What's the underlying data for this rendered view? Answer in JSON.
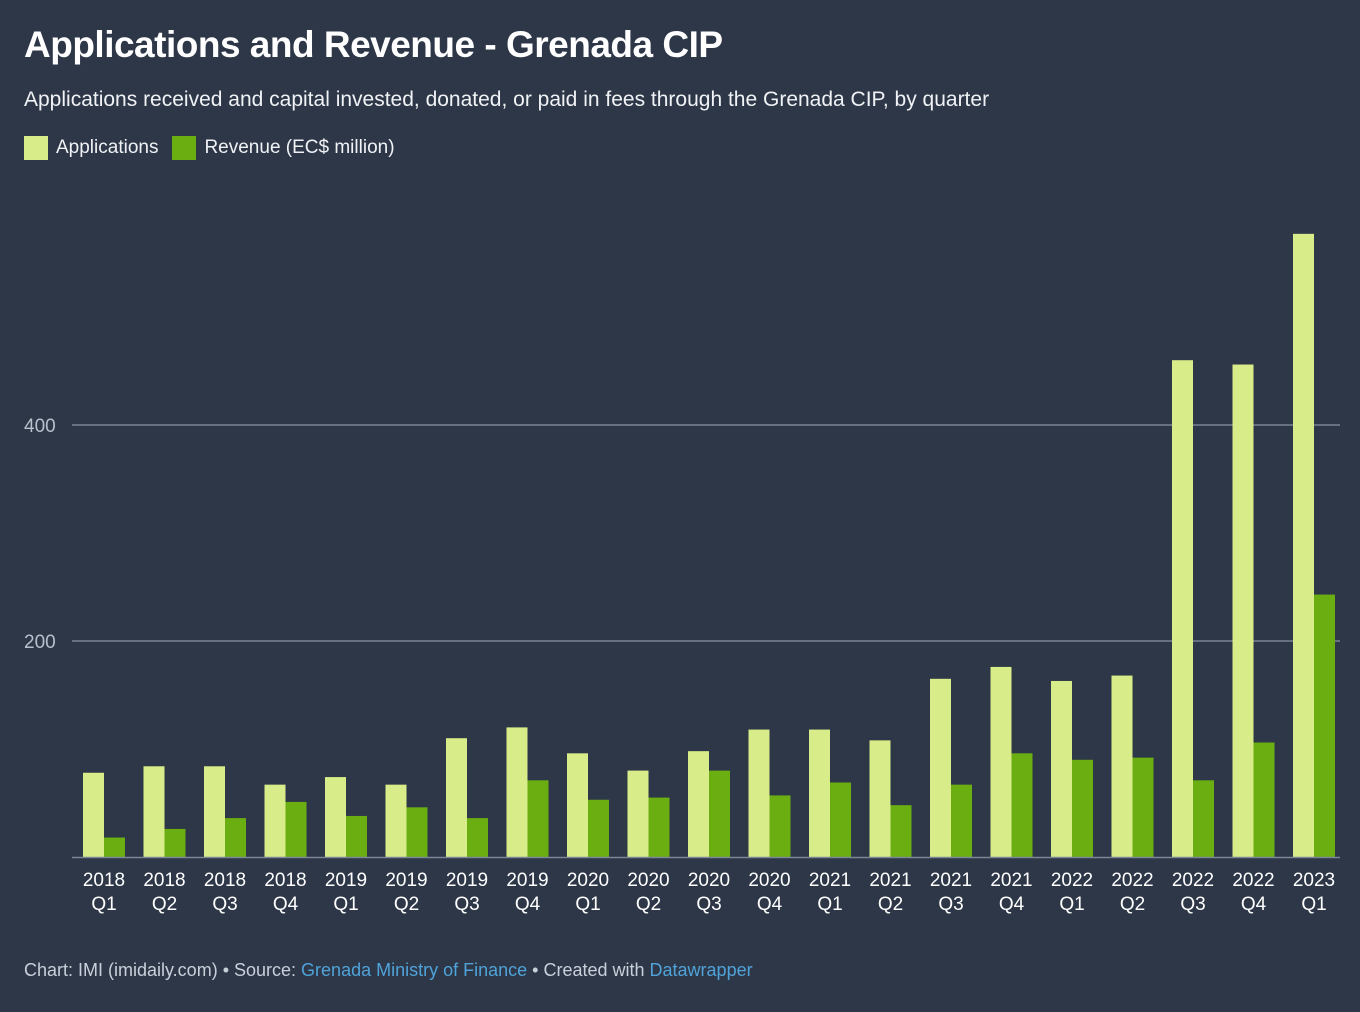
{
  "title": "Applications and Revenue - Grenada CIP",
  "subtitle": "Applications received and capital invested, donated, or paid in fees through the Grenada CIP, by quarter",
  "colors": {
    "background": "#2d3748",
    "applications": "#d9ec8a",
    "revenue": "#6aae12",
    "gridline": "#8a93a0",
    "link": "#4fa3d9"
  },
  "footer": {
    "chart_label": "Chart: IMI (imidaily.com)",
    "sep1": " • ",
    "source_label": "Source: ",
    "source_link": "Grenada Ministry of Finance",
    "sep2": " • ",
    "created_label": "Created with ",
    "created_link": "Datawrapper"
  },
  "chart_data": {
    "type": "bar",
    "categories": [
      [
        "2018",
        "Q1"
      ],
      [
        "2018",
        "Q2"
      ],
      [
        "2018",
        "Q3"
      ],
      [
        "2018",
        "Q4"
      ],
      [
        "2019",
        "Q1"
      ],
      [
        "2019",
        "Q2"
      ],
      [
        "2019",
        "Q3"
      ],
      [
        "2019",
        "Q4"
      ],
      [
        "2020",
        "Q1"
      ],
      [
        "2020",
        "Q2"
      ],
      [
        "2020",
        "Q3"
      ],
      [
        "2020",
        "Q4"
      ],
      [
        "2021",
        "Q1"
      ],
      [
        "2021",
        "Q2"
      ],
      [
        "2021",
        "Q3"
      ],
      [
        "2021",
        "Q4"
      ],
      [
        "2022",
        "Q1"
      ],
      [
        "2022",
        "Q2"
      ],
      [
        "2022",
        "Q3"
      ],
      [
        "2022",
        "Q4"
      ],
      [
        "2023",
        "Q1"
      ]
    ],
    "series": [
      {
        "name": "Applications",
        "color": "#d9ec8a",
        "values": [
          78,
          84,
          84,
          67,
          74,
          67,
          110,
          120,
          96,
          80,
          98,
          118,
          118,
          108,
          165,
          176,
          163,
          168,
          460,
          456,
          577
        ]
      },
      {
        "name": "Revenue (EC$ million)",
        "color": "#6aae12",
        "values": [
          18,
          26,
          36,
          51,
          38,
          46,
          36,
          71,
          53,
          55,
          80,
          57,
          69,
          48,
          67,
          96,
          90,
          92,
          71,
          106,
          243
        ]
      }
    ],
    "yticks": [
      200,
      400
    ],
    "ylim": [
      0,
      620
    ],
    "grid": true,
    "legend_position": "top-left"
  }
}
